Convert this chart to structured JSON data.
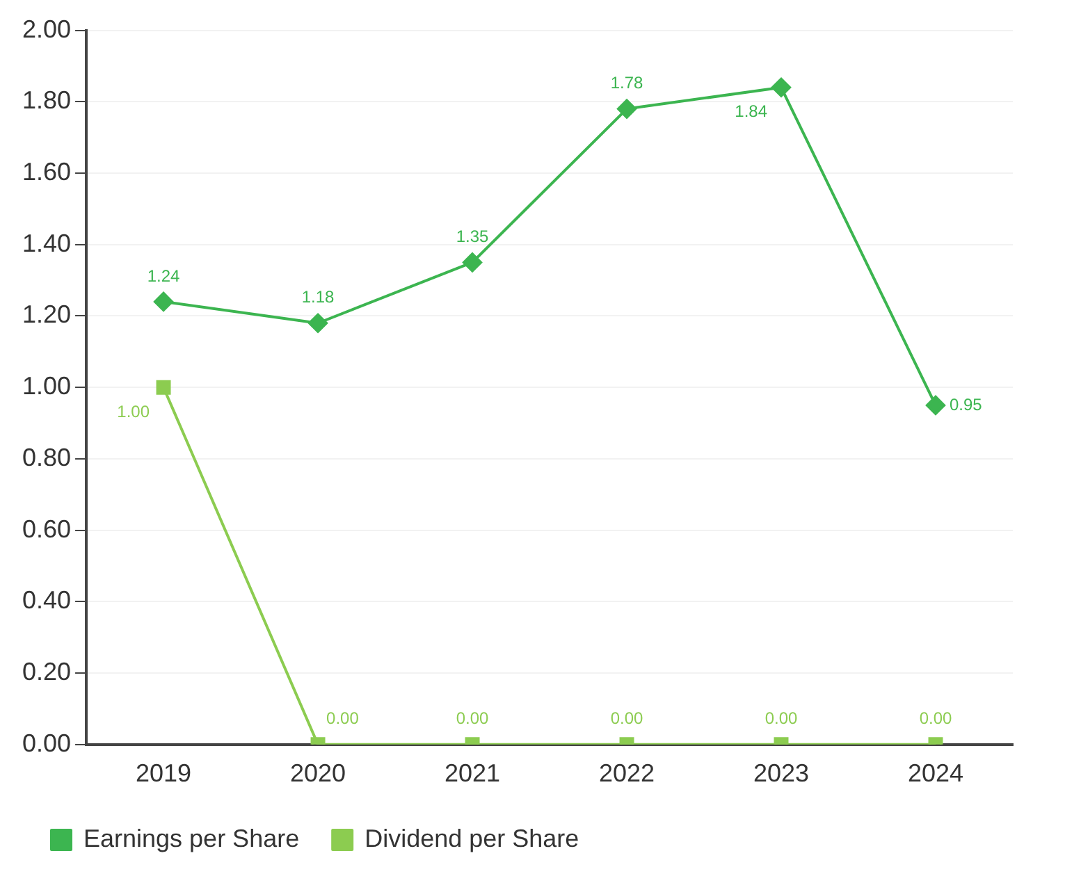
{
  "chart_data": {
    "type": "line",
    "categories": [
      "2019",
      "2020",
      "2021",
      "2022",
      "2023",
      "2024"
    ],
    "series": [
      {
        "name": "Earnings per Share",
        "color": "#3cb550",
        "marker": "diamond",
        "values": [
          1.24,
          1.18,
          1.35,
          1.78,
          1.84,
          0.95
        ],
        "value_labels": [
          "1.24",
          "1.18",
          "1.35",
          "1.78",
          "1.84",
          "0.95"
        ]
      },
      {
        "name": "Dividend per Share",
        "color": "#8ccc50",
        "marker": "square",
        "values": [
          1.0,
          0.0,
          0.0,
          0.0,
          0.0,
          0.0
        ],
        "value_labels": [
          "1.00",
          "0.00",
          "0.00",
          "0.00",
          "0.00",
          "0.00"
        ]
      }
    ],
    "ylim": [
      0,
      2
    ],
    "yticks": [
      {
        "value": 0,
        "label": "0.00"
      },
      {
        "value": 0.2,
        "label": "0.20"
      },
      {
        "value": 0.4,
        "label": "0.40"
      },
      {
        "value": 0.6,
        "label": "0.60"
      },
      {
        "value": 0.8,
        "label": "0.80"
      },
      {
        "value": 1,
        "label": "1.00"
      },
      {
        "value": 1.2,
        "label": "1.20"
      },
      {
        "value": 1.4,
        "label": "1.40"
      },
      {
        "value": 1.6,
        "label": "1.60"
      },
      {
        "value": 1.8,
        "label": "1.80"
      },
      {
        "value": 2,
        "label": "2.00"
      }
    ],
    "grid": "y",
    "legend": "bottom left"
  }
}
